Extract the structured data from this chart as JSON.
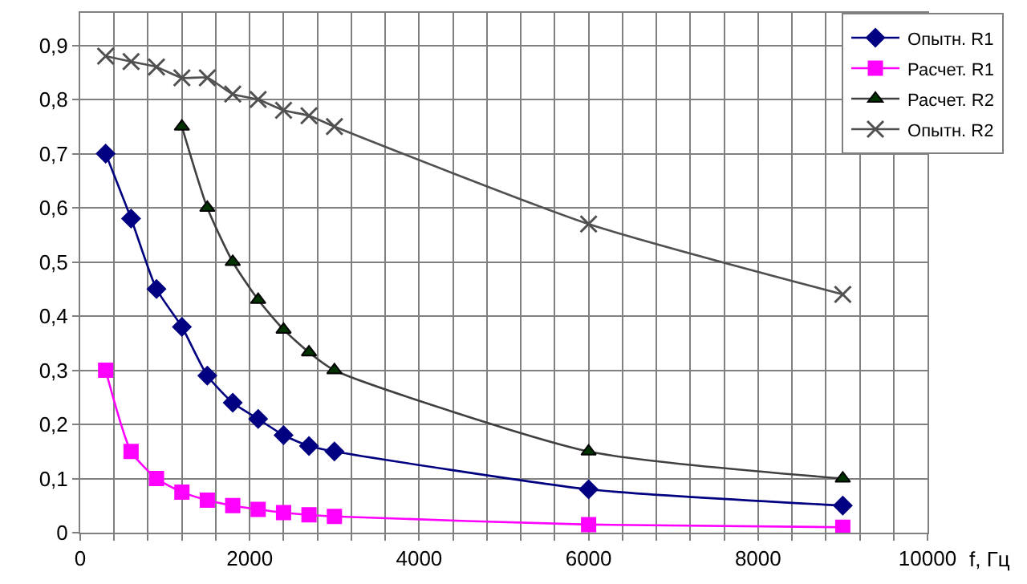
{
  "chart_data": {
    "type": "line",
    "xlabel": "f, Гц",
    "x": [
      300,
      600,
      900,
      1200,
      1500,
      1800,
      2100,
      2400,
      2700,
      3000,
      6000,
      9000
    ],
    "series": [
      {
        "name": "Опытн. R1",
        "color": "#000080",
        "marker": "diamond",
        "values": [
          0.7,
          0.58,
          0.45,
          0.38,
          0.29,
          0.24,
          0.21,
          0.18,
          0.16,
          0.15,
          0.08,
          0.05
        ]
      },
      {
        "name": "Расчет. R1",
        "color": "#ff00ff",
        "marker": "square",
        "values": [
          0.3,
          0.15,
          0.1,
          0.075,
          0.06,
          0.05,
          0.043,
          0.037,
          0.033,
          0.03,
          0.015,
          0.01
        ]
      },
      {
        "name": "Расчет. R2",
        "color": "#404040",
        "marker": "triangle",
        "values": [
          null,
          null,
          null,
          0.75,
          0.6,
          0.5,
          0.43,
          0.375,
          0.333,
          0.3,
          0.15,
          0.1
        ]
      },
      {
        "name": "Опытн. R2",
        "color": "#505050",
        "marker": "cross",
        "values": [
          0.88,
          0.87,
          0.86,
          0.84,
          0.84,
          0.81,
          0.8,
          0.78,
          0.77,
          0.75,
          0.57,
          0.44
        ]
      }
    ],
    "xlim": [
      0,
      10000
    ],
    "xticks": [
      0,
      {
        "value": 400,
        "label": null
      },
      {
        "value": 800,
        "label": null
      },
      {
        "value": 1200,
        "label": null
      },
      {
        "value": 1600,
        "label": null
      },
      2000,
      {
        "value": 2400,
        "label": null
      },
      {
        "value": 2800,
        "label": null
      },
      {
        "value": 3200,
        "label": null
      },
      {
        "value": 3600,
        "label": null
      },
      4000,
      {
        "value": 4400,
        "label": null
      },
      {
        "value": 4800,
        "label": null
      },
      {
        "value": 5200,
        "label": null
      },
      {
        "value": 5600,
        "label": null
      },
      6000,
      {
        "value": 6400,
        "label": null
      },
      {
        "value": 6800,
        "label": null
      },
      {
        "value": 7200,
        "label": null
      },
      {
        "value": 7600,
        "label": null
      },
      8000,
      {
        "value": 8400,
        "label": null
      },
      {
        "value": 8800,
        "label": null
      },
      {
        "value": 9200,
        "label": null
      },
      {
        "value": 9600,
        "label": null
      },
      10000
    ],
    "ylim": [
      0,
      0.96
    ],
    "yticks": [
      0,
      {
        "value": 0.1,
        "label": "0,1"
      },
      {
        "value": 0.2,
        "label": "0,2"
      },
      {
        "value": 0.3,
        "label": "0,3"
      },
      {
        "value": 0.4,
        "label": "0,4"
      },
      {
        "value": 0.5,
        "label": "0,5"
      },
      {
        "value": 0.6,
        "label": "0,6"
      },
      {
        "value": 0.7,
        "label": "0,7"
      },
      {
        "value": 0.8,
        "label": "0,8"
      },
      {
        "value": 0.9,
        "label": "0,9"
      }
    ],
    "grid": true,
    "legend": "top right",
    "line_style": "solid"
  }
}
